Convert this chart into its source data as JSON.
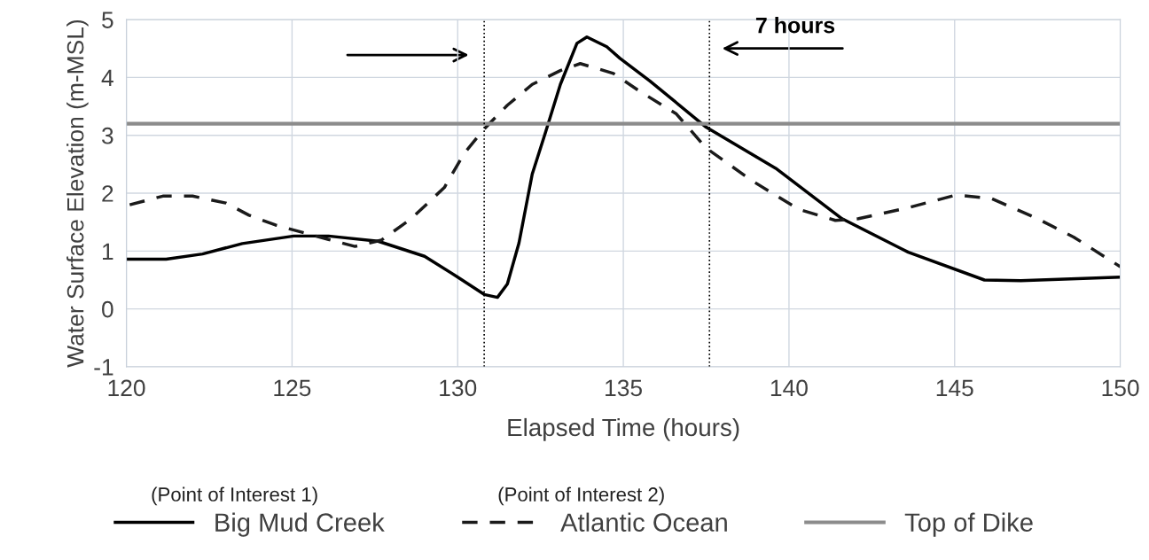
{
  "chart_data": {
    "type": "line",
    "xlabel": "Elapsed Time (hours)",
    "ylabel": "Water Surface Elevation (m-MSL)",
    "xlim": [
      120,
      150
    ],
    "xticks": [
      120,
      125,
      130,
      135,
      140,
      145,
      150
    ],
    "ylim": [
      -1,
      5
    ],
    "yticks": [
      -1,
      0,
      1,
      2,
      3,
      4,
      5
    ],
    "grid": true,
    "legend": "bottom",
    "marker": "none",
    "series": [
      {
        "name": "Big Mud Creek",
        "color": "#000000",
        "line_style": "solid",
        "x": [
          120,
          121.2,
          122.3,
          123.5,
          125.05,
          126.1,
          127.6,
          129.0,
          130.0,
          130.8,
          131.2,
          131.5,
          131.85,
          132.25,
          132.65,
          133.1,
          133.6,
          133.9,
          134.5,
          134.9,
          135.8,
          137.5,
          139.6,
          141.6,
          143.6,
          145.9,
          147.0,
          150
        ],
        "values": [
          0.86,
          0.86,
          0.95,
          1.13,
          1.26,
          1.26,
          1.17,
          0.91,
          0.55,
          0.25,
          0.2,
          0.43,
          1.14,
          2.33,
          3.05,
          3.88,
          4.59,
          4.7,
          4.53,
          4.33,
          3.94,
          3.14,
          2.43,
          1.56,
          0.98,
          0.5,
          0.49,
          0.55
        ]
      },
      {
        "name": "Atlantic Ocean",
        "color": "#1a1a1a",
        "line_style": "dashed",
        "x": [
          120.1,
          121.1,
          122.0,
          123.0,
          123.7,
          124.5,
          126.1,
          126.9,
          127.7,
          128.6,
          129.6,
          130.2,
          130.8,
          131.5,
          132.25,
          133.1,
          133.7,
          134.7,
          135.5,
          136.6,
          137.5,
          138.9,
          140.3,
          141.4,
          142.1,
          143.6,
          145.05,
          146.1,
          147.5,
          148.6,
          150
        ],
        "values": [
          1.8,
          1.95,
          1.95,
          1.83,
          1.62,
          1.45,
          1.2,
          1.08,
          1.19,
          1.56,
          2.1,
          2.69,
          3.11,
          3.52,
          3.88,
          4.12,
          4.24,
          4.07,
          3.76,
          3.37,
          2.78,
          2.21,
          1.72,
          1.53,
          1.56,
          1.75,
          1.97,
          1.91,
          1.56,
          1.24,
          0.73
        ]
      },
      {
        "name": "Top of Dike",
        "color": "#8c8c8c",
        "line_style": "solid",
        "x": [
          120,
          150
        ],
        "values": [
          3.2,
          3.2
        ]
      }
    ],
    "ref_lines": [
      {
        "axis": "x",
        "value": 130.8,
        "color": "#000000",
        "line_style": "dotted"
      },
      {
        "axis": "x",
        "value": 137.6,
        "color": "#000000",
        "line_style": "dotted"
      }
    ],
    "annotations": [
      "7 hours",
      "(Point of Interest 1)",
      "(Point of Interest 2)"
    ]
  }
}
